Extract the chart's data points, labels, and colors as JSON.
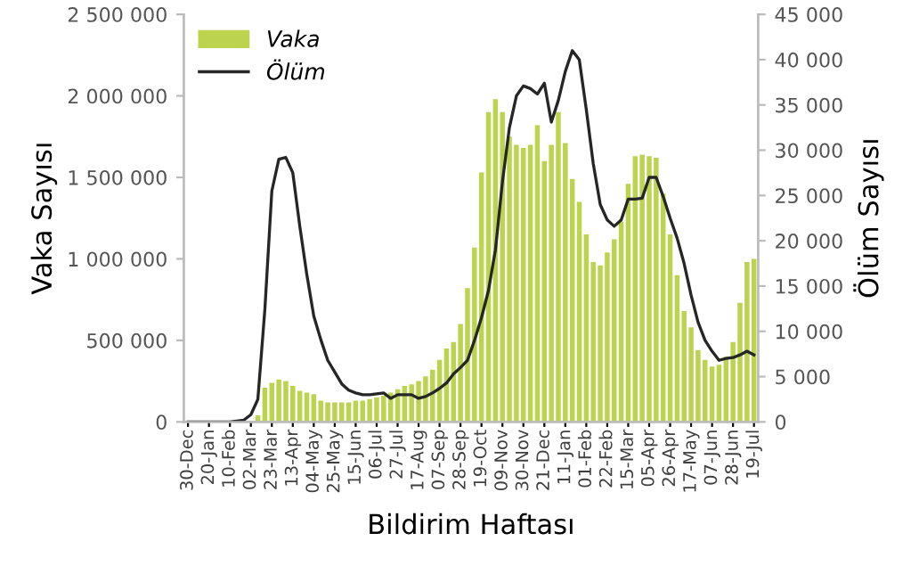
{
  "chart_data": {
    "type": "bar",
    "xlabel": "Bildirim Haftası",
    "ylabel": "Vaka Sayısı",
    "y2label": "Ölüm Sayısı",
    "categories": [
      "30-Dec",
      null,
      null,
      "20-Jan",
      null,
      null,
      "10-Feb",
      null,
      null,
      "02-Mar",
      null,
      null,
      "23-Mar",
      null,
      null,
      "13-Apr",
      null,
      null,
      "04-May",
      null,
      null,
      "25-May",
      null,
      null,
      "15-Jun",
      null,
      null,
      "06-Jul",
      null,
      null,
      "27-Jul",
      null,
      null,
      "17-Aug",
      null,
      null,
      "07-Sep",
      null,
      null,
      "28-Sep",
      null,
      null,
      "19-Oct",
      null,
      null,
      "09-Nov",
      null,
      null,
      "30-Nov",
      null,
      null,
      "21-Dec",
      null,
      null,
      "11-Jan",
      null,
      null,
      "01-Feb",
      null,
      null,
      "22-Feb",
      null,
      null,
      "15-Mar",
      null,
      null,
      "05-Apr",
      null,
      null,
      "26-Apr",
      null,
      null,
      "17-May",
      null,
      null,
      "07-Jun",
      null,
      null,
      "28-Jun",
      null,
      null,
      "19-Jul"
    ],
    "series": [
      {
        "name": "Vaka",
        "color": "#bcd34f",
        "values": [
          0,
          0,
          0,
          0,
          0,
          0,
          0,
          0,
          0,
          null,
          40000,
          210000,
          240000,
          260000,
          250000,
          220000,
          190000,
          180000,
          170000,
          130000,
          120000,
          120000,
          120000,
          120000,
          130000,
          130000,
          140000,
          150000,
          160000,
          180000,
          200000,
          220000,
          230000,
          250000,
          280000,
          320000,
          380000,
          450000,
          490000,
          600000,
          820000,
          1070000,
          1530000,
          1900000,
          1980000,
          1900000,
          1750000,
          1700000,
          1680000,
          1700000,
          1820000,
          1600000,
          1700000,
          1900000,
          1710000,
          1490000,
          1350000,
          1150000,
          980000,
          960000,
          1040000,
          1120000,
          1230000,
          1460000,
          1630000,
          1640000,
          1630000,
          1620000,
          1400000,
          1150000,
          900000,
          680000,
          580000,
          440000,
          380000,
          340000,
          350000,
          400000,
          490000,
          730000,
          980000,
          1000000
        ]
      },
      {
        "name": "Ölüm",
        "type": "line",
        "axis": "y2",
        "color": "#262626",
        "values": [
          0,
          0,
          0,
          0,
          0,
          0,
          0,
          100,
          200,
          800,
          2500,
          12400,
          25500,
          29000,
          29200,
          27500,
          21600,
          16300,
          11700,
          9100,
          6800,
          5500,
          4200,
          3500,
          3200,
          3000,
          3000,
          3100,
          3200,
          2600,
          3000,
          3000,
          3000,
          2600,
          2800,
          3200,
          3700,
          4300,
          5300,
          6000,
          6800,
          9000,
          11500,
          14500,
          19000,
          26500,
          32500,
          36000,
          37100,
          36800,
          36200,
          37400,
          33100,
          35500,
          38700,
          41000,
          40000,
          34500,
          28500,
          24000,
          22300,
          21600,
          22300,
          24600,
          24600,
          24700,
          27000,
          27000,
          24900,
          22500,
          20300,
          17500,
          14000,
          11000,
          9000,
          7800,
          6800,
          7000,
          7100,
          7400,
          7800,
          7400
        ]
      }
    ],
    "ylim": [
      0,
      2500000
    ],
    "yticks": [
      {
        "value": 0,
        "label": "0"
      },
      {
        "value": 500000,
        "label": "500 000"
      },
      {
        "value": 1000000,
        "label": "1 000 000"
      },
      {
        "value": 1500000,
        "label": "1 500 000"
      },
      {
        "value": 2000000,
        "label": "2 000 000"
      },
      {
        "value": 2500000,
        "label": "2 500 000"
      }
    ],
    "y2lim": [
      0,
      45000
    ],
    "y2ticks": [
      {
        "value": 0,
        "label": "0"
      },
      {
        "value": 5000,
        "label": "5 000"
      },
      {
        "value": 10000,
        "label": "10 000"
      },
      {
        "value": 15000,
        "label": "15 000"
      },
      {
        "value": 20000,
        "label": "20 000"
      },
      {
        "value": 25000,
        "label": "25 000"
      },
      {
        "value": 30000,
        "label": "30 000"
      },
      {
        "value": 35000,
        "label": "35 000"
      },
      {
        "value": 40000,
        "label": "40 000"
      },
      {
        "value": 45000,
        "label": "45 000"
      }
    ],
    "grid": false,
    "legend": "top left",
    "marker": "none",
    "line_style": "solid"
  }
}
